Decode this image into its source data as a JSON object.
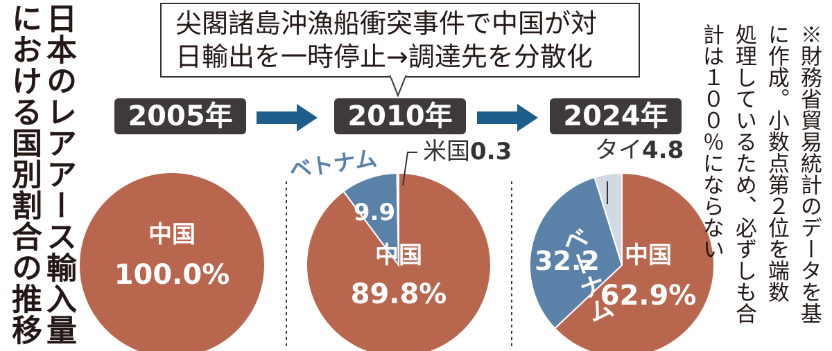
{
  "title": {
    "line1": "日本のレアアース輸入量",
    "line2": "における国別割合の推移"
  },
  "callout": {
    "line1": "尖閣諸島沖漁船衝突事件で中国が対",
    "line2": "日輸出を一時停止→調達先を分散化"
  },
  "years": [
    "2005年",
    "2010年",
    "2024年"
  ],
  "note": {
    "line1": "※財務省貿易統計のデータを基",
    "line2": "に作成。小数点第２位を端数",
    "line3": "処理しているため、必ずしも合",
    "line4": "計は１００％にならない"
  },
  "colors": {
    "china": "#b9664f",
    "vietnam": "#5a81a8",
    "thailand": "#d3d9e3",
    "usa": "#d3d9e3",
    "yearbox": "#3f3a3a",
    "arrow": "#1f5d8b"
  },
  "chart_data": [
    {
      "type": "pie",
      "title": "2005年",
      "slices": [
        {
          "label": "中国",
          "value": 100.0,
          "display": "100.0%",
          "color": "#b9664f"
        }
      ]
    },
    {
      "type": "pie",
      "title": "2010年",
      "slices": [
        {
          "label": "中国",
          "value": 89.8,
          "display": "89.8%",
          "color": "#b9664f"
        },
        {
          "label": "ベトナム",
          "value": 9.9,
          "display": "9.9",
          "color": "#5a81a8"
        },
        {
          "label": "米国",
          "value": 0.3,
          "display": "0.3",
          "color": "#d3d9e3"
        }
      ]
    },
    {
      "type": "pie",
      "title": "2024年",
      "slices": [
        {
          "label": "中国",
          "value": 62.9,
          "display": "62.9%",
          "color": "#b9664f"
        },
        {
          "label": "ベトナム",
          "value": 32.2,
          "display": "32.2",
          "color": "#5a81a8"
        },
        {
          "label": "タイ",
          "value": 4.8,
          "display": "4.8",
          "color": "#d3d9e3"
        }
      ]
    }
  ]
}
